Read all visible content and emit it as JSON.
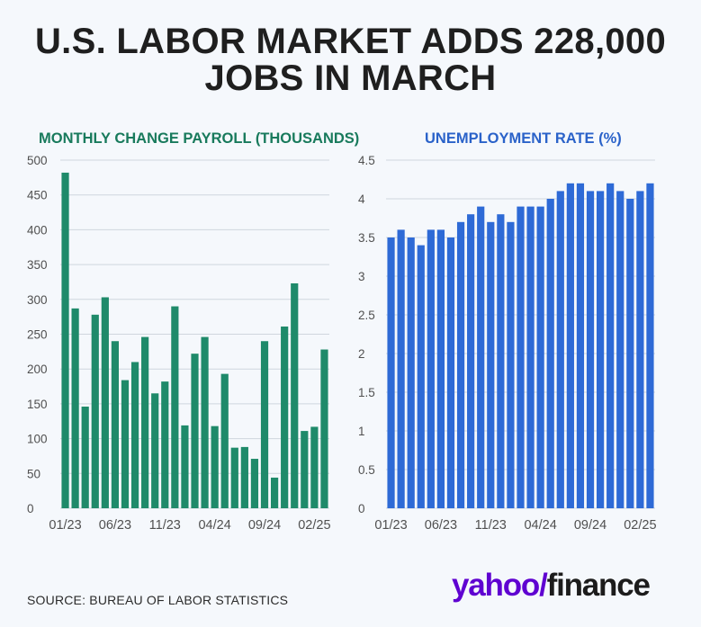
{
  "headline": {
    "line1": "U.S. LABOR MARKET ADDS 228,000",
    "line2": "JOBS IN MARCH"
  },
  "source": "SOURCE: BUREAU OF LABOR STATISTICS",
  "logo": {
    "yahoo": "yahoo",
    "slash": "/",
    "finance": "finance"
  },
  "colors": {
    "payroll": "#1f8a6a",
    "unemployment": "#2e6ad6",
    "payroll_title": "#187a5c",
    "unemployment_title": "#2a62c9",
    "logo_purple": "#5f01d1"
  },
  "chart_data": [
    {
      "type": "bar",
      "title": "MONTHLY CHANGE PAYROLL (THOUSANDS)",
      "ylim": [
        0,
        500
      ],
      "yticks": [
        "0",
        "50",
        "100",
        "150",
        "200",
        "250",
        "300",
        "350",
        "400",
        "450",
        "500"
      ],
      "xticks": [
        "01/23",
        "06/23",
        "11/23",
        "04/24",
        "09/24",
        "02/25"
      ],
      "xtick_months": [
        "2023-01",
        "2023-06",
        "2023-11",
        "2024-04",
        "2024-09",
        "2025-02"
      ],
      "categories": [
        "2023-01",
        "2023-02",
        "2023-03",
        "2023-04",
        "2023-05",
        "2023-06",
        "2023-07",
        "2023-08",
        "2023-09",
        "2023-10",
        "2023-11",
        "2023-12",
        "2024-01",
        "2024-02",
        "2024-03",
        "2024-04",
        "2024-05",
        "2024-06",
        "2024-07",
        "2024-08",
        "2024-09",
        "2024-10",
        "2024-11",
        "2024-12",
        "2025-01",
        "2025-02",
        "2025-03"
      ],
      "values": [
        482,
        287,
        146,
        278,
        303,
        240,
        184,
        210,
        246,
        165,
        182,
        290,
        119,
        222,
        246,
        118,
        193,
        87,
        88,
        71,
        240,
        44,
        261,
        323,
        111,
        117,
        228
      ]
    },
    {
      "type": "bar",
      "title": "UNEMPLOYMENT RATE (%)",
      "ylim": [
        0,
        4.5
      ],
      "yticks": [
        "0",
        "0.5",
        "1",
        "1.5",
        "2",
        "2.5",
        "3",
        "3.5",
        "4",
        "4.5"
      ],
      "xticks": [
        "01/23",
        "06/23",
        "11/23",
        "04/24",
        "09/24",
        "02/25"
      ],
      "xtick_months": [
        "2023-01",
        "2023-06",
        "2023-11",
        "2024-04",
        "2024-09",
        "2025-02"
      ],
      "categories": [
        "2023-01",
        "2023-02",
        "2023-03",
        "2023-04",
        "2023-05",
        "2023-06",
        "2023-07",
        "2023-08",
        "2023-09",
        "2023-10",
        "2023-11",
        "2023-12",
        "2024-01",
        "2024-02",
        "2024-03",
        "2024-04",
        "2024-05",
        "2024-06",
        "2024-07",
        "2024-08",
        "2024-09",
        "2024-10",
        "2024-11",
        "2024-12",
        "2025-01",
        "2025-02",
        "2025-03"
      ],
      "values": [
        3.5,
        3.6,
        3.5,
        3.4,
        3.6,
        3.6,
        3.5,
        3.7,
        3.8,
        3.9,
        3.7,
        3.8,
        3.7,
        3.9,
        3.9,
        3.9,
        4.0,
        4.1,
        4.2,
        4.2,
        4.1,
        4.1,
        4.2,
        4.1,
        4.0,
        4.1,
        4.2
      ]
    }
  ]
}
